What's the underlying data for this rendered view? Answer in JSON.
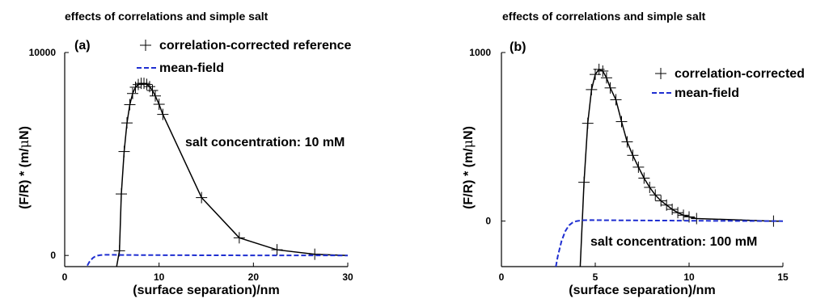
{
  "colors": {
    "correction": "#000000",
    "meanfield": "#1f2fd1",
    "axis": "#000000"
  },
  "chart_data": [
    {
      "type": "line",
      "title": "effects of correlations and simple salt",
      "panel_label": "(a)",
      "xlabel": "(surface separation)/nm",
      "ylabel_prefix": "(F/R) * (m/",
      "ylabel_mu": "μ",
      "ylabel_suffix": "N)",
      "xlim": [
        0,
        30
      ],
      "ylim": [
        -550,
        10000
      ],
      "xticks": [
        0,
        10,
        20,
        30
      ],
      "yticks": [
        0,
        10000
      ],
      "annotation": "salt concentration: 10 mM",
      "series": [
        {
          "name": "correlation-corrected reference",
          "style": "line-plus",
          "x": [
            5.5,
            5.8,
            6.0,
            6.3,
            6.6,
            6.9,
            7.2,
            7.5,
            7.8,
            8.1,
            8.4,
            8.7,
            9.0,
            9.3,
            9.6,
            10.0,
            10.4,
            14.5,
            18.5,
            22.5,
            26.5,
            30.0
          ],
          "y": [
            -550,
            230,
            3030,
            5120,
            6530,
            7430,
            7980,
            8290,
            8420,
            8480,
            8480,
            8430,
            8320,
            8130,
            7860,
            7450,
            6950,
            2850,
            870,
            280,
            60,
            0
          ],
          "markers": [
            5.8,
            6.0,
            6.3,
            6.6,
            6.9,
            7.2,
            7.5,
            7.8,
            8.1,
            8.4,
            8.7,
            9.0,
            9.3,
            9.6,
            10.0,
            10.4,
            14.5,
            18.5,
            22.5,
            26.5
          ]
        },
        {
          "name": "mean-field",
          "style": "dashed",
          "x": [
            2.4,
            2.6,
            2.8,
            3.0,
            3.2,
            3.5,
            3.8,
            4.2,
            5.0,
            6.0,
            8.0,
            12.0,
            20.0,
            30.0
          ],
          "y": [
            -500,
            -330,
            -210,
            -120,
            -60,
            -10,
            15,
            30,
            30,
            25,
            20,
            12,
            5,
            0
          ]
        }
      ]
    },
    {
      "type": "line",
      "title": "effects of correlations and simple salt",
      "panel_label": "(b)",
      "xlabel": "(surface separation)/nm",
      "ylabel_prefix": "(F/R) * (m/",
      "ylabel_mu": "μ",
      "ylabel_suffix": "N)",
      "xlim": [
        0,
        15
      ],
      "ylim": [
        -270,
        1000
      ],
      "xticks": [
        0,
        5,
        10,
        15
      ],
      "yticks": [
        0,
        1000
      ],
      "annotation": "salt concentration: 100 mM",
      "series": [
        {
          "name": "correlation-corrected",
          "style": "line-plus",
          "x": [
            4.2,
            4.4,
            4.6,
            4.8,
            5.0,
            5.2,
            5.4,
            5.6,
            5.8,
            6.1,
            6.4,
            6.7,
            7.0,
            7.3,
            7.6,
            7.9,
            8.2,
            8.5,
            8.8,
            9.1,
            9.4,
            9.7,
            10.0,
            10.4,
            14.5,
            15.0
          ],
          "y": [
            -270,
            230,
            580,
            780,
            870,
            900,
            890,
            850,
            790,
            720,
            590,
            470,
            390,
            320,
            255,
            200,
            155,
            120,
            95,
            70,
            50,
            35,
            25,
            15,
            0,
            0
          ],
          "markers": [
            4.4,
            4.6,
            4.8,
            5.0,
            5.2,
            5.4,
            5.6,
            5.8,
            6.1,
            6.4,
            6.7,
            7.0,
            7.3,
            7.6,
            7.9,
            8.2,
            8.5,
            8.8,
            9.1,
            9.4,
            9.7,
            10.0,
            10.4,
            14.5
          ]
        },
        {
          "name": "mean-field",
          "style": "dashed",
          "x": [
            2.9,
            3.0,
            3.2,
            3.4,
            3.6,
            3.8,
            4.0,
            4.3,
            4.8,
            5.5,
            7.0,
            10.0,
            15.0
          ],
          "y": [
            -270,
            -210,
            -120,
            -60,
            -25,
            -8,
            0,
            5,
            6,
            5,
            4,
            2,
            0
          ]
        }
      ]
    }
  ]
}
